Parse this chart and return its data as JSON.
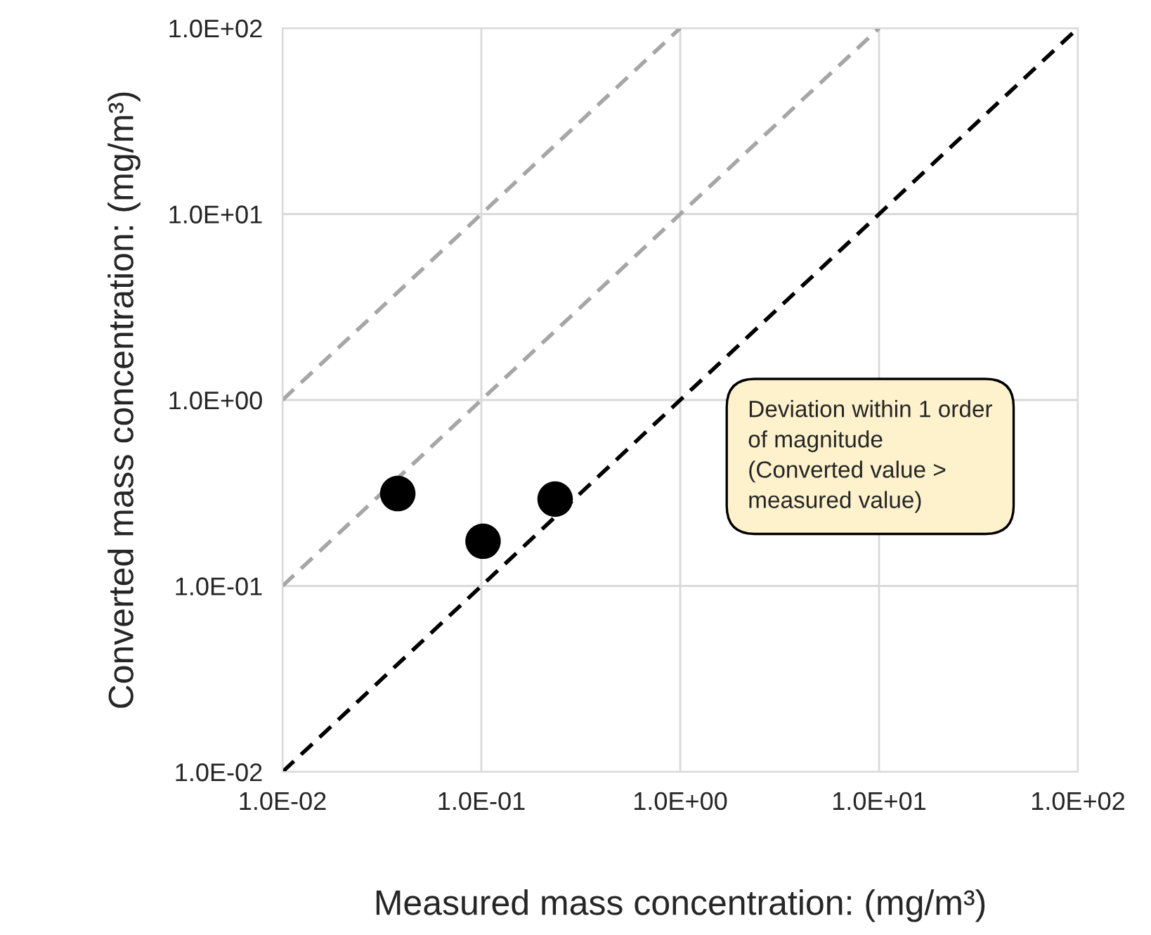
{
  "chart_data": {
    "type": "scatter",
    "xlabel": "Measured mass concentration: (mg/m³)",
    "ylabel": "Converted mass concentration: (mg/m³)",
    "log": "xy",
    "grid": true,
    "xlim": [
      0.01,
      100
    ],
    "ylim": [
      0.01,
      100
    ],
    "xticks": [
      {
        "value": 0.01,
        "label": "1.0E-02"
      },
      {
        "value": 0.1,
        "label": "1.0E-01"
      },
      {
        "value": 1,
        "label": "1.0E+00"
      },
      {
        "value": 10,
        "label": "1.0E+01"
      },
      {
        "value": 100,
        "label": "1.0E+02"
      }
    ],
    "yticks": [
      {
        "value": 0.01,
        "label": "1.0E-02"
      },
      {
        "value": 0.1,
        "label": "1.0E-01"
      },
      {
        "value": 1,
        "label": "1.0E+00"
      },
      {
        "value": 10,
        "label": "1.0E+01"
      },
      {
        "value": 100,
        "label": "1.0E+02"
      }
    ],
    "series": [
      {
        "type": "line",
        "color": "#a6a6a6",
        "line_style": "dashed",
        "marker": "none",
        "x": [
          0.01,
          1
        ],
        "values": [
          1,
          100
        ]
      },
      {
        "type": "line",
        "color": "#a6a6a6",
        "line_style": "dashed",
        "marker": "none",
        "x": [
          0.01,
          10
        ],
        "values": [
          0.1,
          100
        ]
      },
      {
        "type": "line",
        "color": "#000000",
        "line_style": "dashed",
        "marker": "none",
        "x": [
          0.01,
          100
        ],
        "values": [
          0.01,
          100
        ]
      },
      {
        "color": "#000000",
        "marker": "circle",
        "x": [
          0.038,
          0.102,
          0.235
        ],
        "values": [
          0.314,
          0.174,
          0.293
        ]
      }
    ],
    "annotations": [
      "Deviation within 1 order\nof magnitude\n(Converted value >\nmeasured value)"
    ]
  }
}
